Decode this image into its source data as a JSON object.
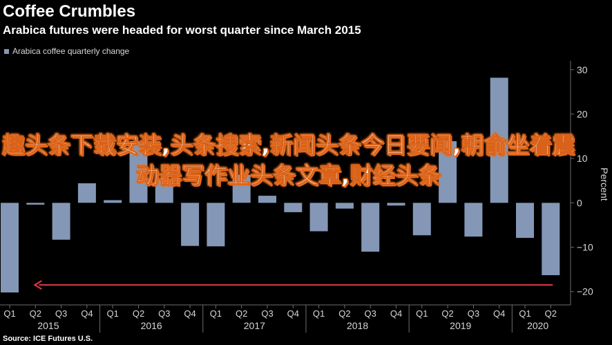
{
  "header": {
    "title": "Coffee Crumbles",
    "subtitle": "Arabica futures were headed for worst quarter since March 2015"
  },
  "footer": {
    "source": "Source: ICE Futures U.S."
  },
  "watermark": {
    "text": "趣头条下载安装,头条搜索,新闻头条今日要闻,朝俞坐着震动器写作业头条文章,财经头条"
  },
  "colors": {
    "background": "#000000",
    "bar": "#8497b6",
    "annotation_arrow": "#e23a4a",
    "axis_text": "#d8d8d8",
    "frame": "#6e6e6e"
  },
  "chart_data": {
    "type": "bar",
    "title": "Coffee Crumbles",
    "subtitle": "Arabica futures were headed for worst quarter since March 2015",
    "ylabel": "Percent",
    "xlabel": "",
    "legend": {
      "position": "top-left",
      "entries": [
        "Arabica coffee quarterly change"
      ]
    },
    "y_axis_side": "right",
    "ylim": [
      -23,
      32
    ],
    "yticks": [
      -20,
      -10,
      0,
      10,
      20,
      30
    ],
    "grid": false,
    "categories": [
      "Q1",
      "Q2",
      "Q3",
      "Q4",
      "Q1",
      "Q2",
      "Q3",
      "Q4",
      "Q1",
      "Q2",
      "Q3",
      "Q4",
      "Q1",
      "Q2",
      "Q3",
      "Q4",
      "Q1",
      "Q2",
      "Q3",
      "Q4",
      "Q1",
      "Q2"
    ],
    "year_labels": [
      {
        "label": "2015",
        "start": 0,
        "end": 3
      },
      {
        "label": "2016",
        "start": 4,
        "end": 7
      },
      {
        "label": "2017",
        "start": 8,
        "end": 11
      },
      {
        "label": "2018",
        "start": 12,
        "end": 15
      },
      {
        "label": "2019",
        "start": 16,
        "end": 19
      },
      {
        "label": "2020",
        "start": 20,
        "end": 21
      }
    ],
    "series": [
      {
        "name": "Arabica coffee quarterly change",
        "values": [
          -20.2,
          -0.4,
          -8.3,
          4.4,
          0.6,
          13.9,
          5.4,
          -9.7,
          -9.8,
          6.3,
          1.6,
          -2.1,
          -6.4,
          -1.3,
          -11.0,
          -0.6,
          -7.3,
          13.9,
          -7.6,
          28.2,
          -7.9,
          -16.3
        ]
      }
    ],
    "annotations": [
      {
        "type": "arrow",
        "direction": "left",
        "y_value": -18.5,
        "x_from_index": 21,
        "x_to_index": 1
      }
    ]
  }
}
